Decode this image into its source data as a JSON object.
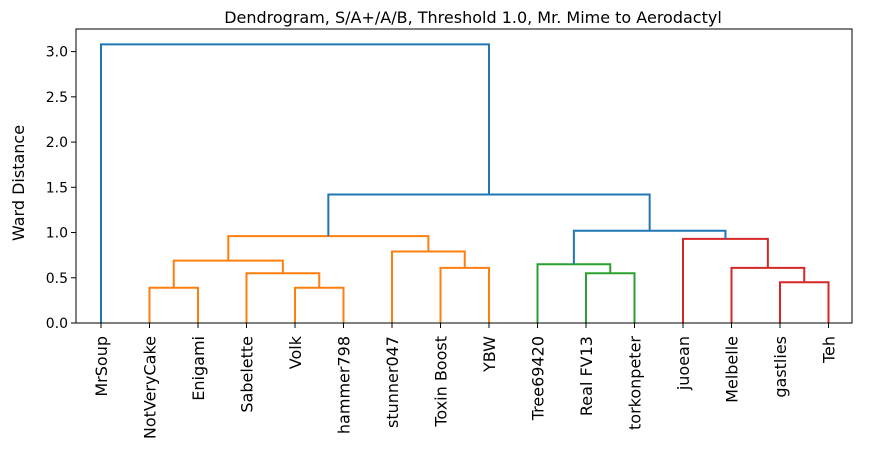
{
  "chart_data": {
    "type": "dendrogram",
    "title": "Dendrogram, S/A+/A/B, Threshold 1.0, Mr. Mime to Aerodactyl",
    "xlabel": "",
    "ylabel": "Ward Distance",
    "ylim": [
      0,
      3.25
    ],
    "yticks": [
      "0.0",
      "0.5",
      "1.0",
      "1.5",
      "2.0",
      "2.5",
      "3.0"
    ],
    "ytick_values": [
      0.0,
      0.5,
      1.0,
      1.5,
      2.0,
      2.5,
      3.0
    ],
    "grid": false,
    "color_threshold": 1.0,
    "leaves": [
      "MrSoup",
      "NotVeryCake",
      "Enigami",
      "Sabelette",
      "Volk",
      "hammer798",
      "stunner047",
      "Toxin Boost",
      "YBW",
      "Tree69420",
      "Real FV13",
      "torkonpeter",
      "juoean",
      "Melbelle",
      "gastlies",
      "Teh"
    ],
    "colors": {
      "above_threshold": "#1f77b4",
      "cluster_1": "#ff7f0e",
      "cluster_2": "#2ca02c",
      "cluster_3": "#d62728"
    },
    "merges": [
      {
        "left": "leaf:1",
        "right": "leaf:2",
        "height": 0.39,
        "color": "cluster_1"
      },
      {
        "left": "leaf:4",
        "right": "leaf:5",
        "height": 0.39,
        "color": "cluster_1"
      },
      {
        "left": "leaf:3",
        "right": "node:1",
        "height": 0.55,
        "color": "cluster_1"
      },
      {
        "left": "node:0",
        "right": "node:2",
        "height": 0.69,
        "color": "cluster_1"
      },
      {
        "left": "leaf:7",
        "right": "leaf:8",
        "height": 0.61,
        "color": "cluster_1"
      },
      {
        "left": "leaf:6",
        "right": "node:4",
        "height": 0.79,
        "color": "cluster_1"
      },
      {
        "left": "node:3",
        "right": "node:5",
        "height": 0.96,
        "color": "cluster_1"
      },
      {
        "left": "leaf:10",
        "right": "leaf:11",
        "height": 0.55,
        "color": "cluster_2"
      },
      {
        "left": "leaf:9",
        "right": "node:7",
        "height": 0.65,
        "color": "cluster_2"
      },
      {
        "left": "leaf:14",
        "right": "leaf:15",
        "height": 0.45,
        "color": "cluster_3"
      },
      {
        "left": "leaf:13",
        "right": "node:9",
        "height": 0.61,
        "color": "cluster_3"
      },
      {
        "left": "leaf:12",
        "right": "node:10",
        "height": 0.93,
        "color": "cluster_3"
      },
      {
        "left": "node:8",
        "right": "node:11",
        "height": 1.02,
        "color": "above_threshold"
      },
      {
        "left": "node:6",
        "right": "node:12",
        "height": 1.42,
        "color": "above_threshold"
      },
      {
        "left": "leaf:0",
        "right": "node:13",
        "height": 3.08,
        "color": "above_threshold"
      }
    ]
  }
}
